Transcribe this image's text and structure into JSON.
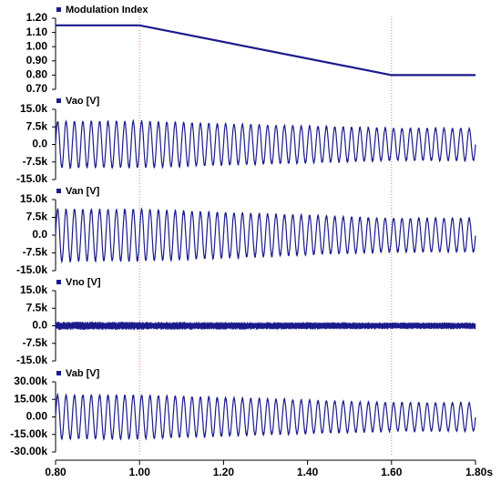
{
  "chart_data": [
    {
      "type": "line",
      "title": "",
      "legend": "Modulation Index",
      "ylim": [
        0.7,
        1.2
      ],
      "y_ticks": [
        "1.20",
        "1.10",
        "1.00",
        "0.90",
        "0.80",
        "0.70"
      ],
      "series": [
        {
          "name": "Modulation Index",
          "x": [
            0.8,
            1.0,
            1.6,
            1.8
          ],
          "values": [
            1.15,
            1.15,
            0.8,
            0.8
          ]
        }
      ]
    },
    {
      "type": "line",
      "legend": "Vao [V]",
      "ylim": [
        -15000,
        15000
      ],
      "y_ticks": [
        "15.0k",
        "7.5k",
        "0.0",
        "-7.5k",
        "-15.0k"
      ],
      "series": [
        {
          "name": "Vao [V]",
          "waveform": "sinusoid",
          "cycles": 50,
          "x": [
            0.8,
            1.0,
            1.6,
            1.8
          ],
          "amplitude": [
            9800,
            9800,
            6800,
            6800
          ]
        }
      ]
    },
    {
      "type": "line",
      "legend": "Van [V]",
      "ylim": [
        -15000,
        15000
      ],
      "y_ticks": [
        "15.0k",
        "7.5k",
        "0.0",
        "-7.5k",
        "-15.0k"
      ],
      "series": [
        {
          "name": "Van [V]",
          "waveform": "sinusoid",
          "cycles": 50,
          "x": [
            0.8,
            1.0,
            1.6,
            1.8
          ],
          "amplitude": [
            10800,
            10800,
            7000,
            7000
          ]
        }
      ]
    },
    {
      "type": "line",
      "legend": "Vno [V]",
      "ylim": [
        -15000,
        15000
      ],
      "y_ticks": [
        "15.0k",
        "7.5k",
        "0.0",
        "-7.5k",
        "-15.0k"
      ],
      "series": [
        {
          "name": "Vno [V]",
          "waveform": "high-frequency ripple",
          "x": [
            0.8,
            1.0,
            1.6,
            1.8
          ],
          "amplitude": [
            1800,
            1800,
            1500,
            1500
          ]
        }
      ]
    },
    {
      "type": "line",
      "legend": "Vab [V]",
      "ylim": [
        -30000,
        30000
      ],
      "y_ticks": [
        "30.00k",
        "15.00k",
        "0.00",
        "-15.00k",
        "-30.00k"
      ],
      "series": [
        {
          "name": "Vab [V]",
          "waveform": "sinusoid",
          "cycles": 50,
          "x": [
            0.8,
            1.0,
            1.6,
            1.8
          ],
          "amplitude": [
            18500,
            18500,
            12000,
            12000
          ]
        }
      ]
    }
  ],
  "x_axis": {
    "xlim": [
      0.8,
      1.8
    ],
    "ticks": [
      "0.80",
      "1.00",
      "1.20",
      "1.40",
      "1.60",
      "1.80s"
    ],
    "markers": [
      1.0,
      1.6
    ]
  },
  "colors": {
    "series": "#1a1a8c",
    "marker": "#e88080",
    "axis": "#000000"
  }
}
